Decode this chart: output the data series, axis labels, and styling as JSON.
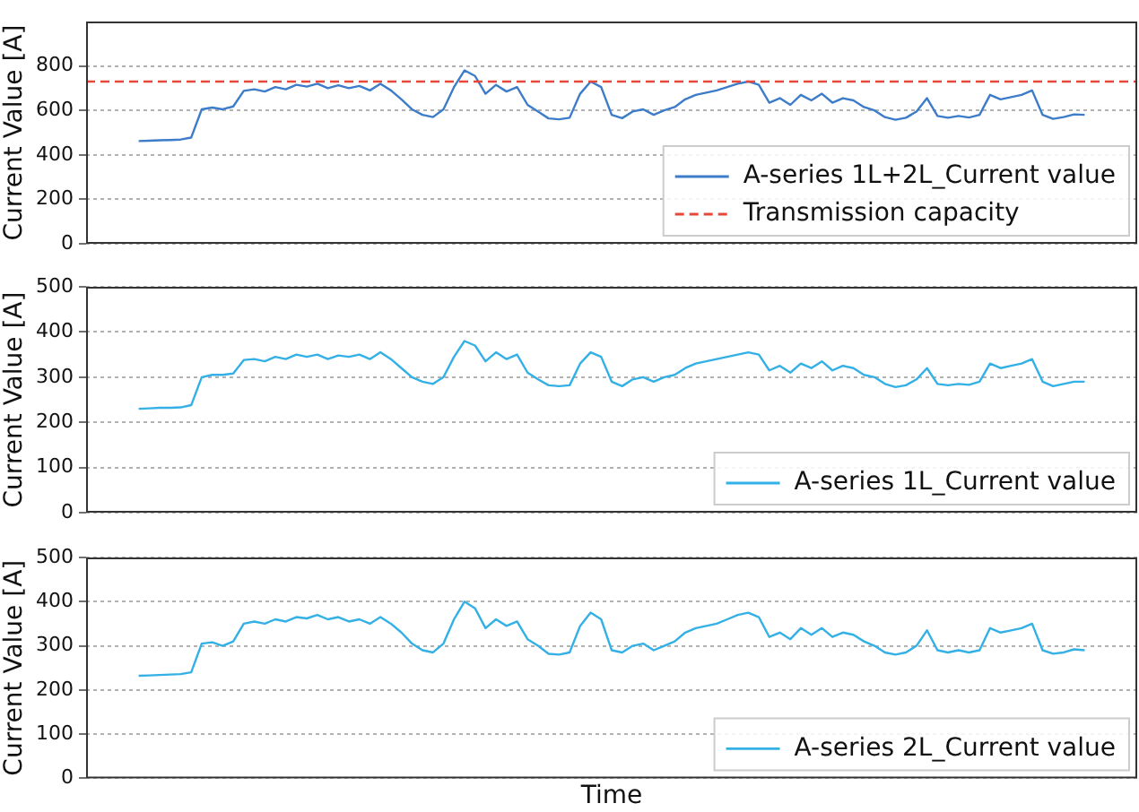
{
  "chart_data": [
    {
      "type": "line",
      "ylabel": "Current Value [A]",
      "categories": [
        null,
        null,
        null,
        null,
        null,
        null,
        null,
        null,
        null,
        null,
        null,
        null,
        null,
        null,
        null,
        null,
        null,
        null,
        null,
        null,
        null,
        null,
        null,
        null,
        null,
        null,
        null,
        null,
        null,
        null,
        null,
        null,
        null,
        null,
        null,
        null,
        null,
        null,
        null,
        null,
        null,
        null,
        null,
        null,
        null,
        null,
        null,
        null,
        null,
        null,
        null,
        null,
        null,
        null,
        null,
        null,
        null,
        null,
        null,
        null,
        null,
        null,
        null,
        null,
        null,
        null,
        null,
        null,
        null,
        null,
        null,
        null,
        null,
        null,
        null,
        null,
        null,
        null,
        null,
        null,
        null,
        null,
        null,
        null,
        null,
        null,
        null,
        null,
        null,
        null,
        null,
        null,
        null,
        null,
        null,
        null,
        null,
        null,
        null,
        null,
        null
      ],
      "series": [
        {
          "name": "A-series 1L+2L_Current value",
          "color": "#3d7cc9",
          "values": [
            null,
            null,
            null,
            null,
            null,
            462,
            464,
            466,
            467,
            469,
            478,
            605,
            613,
            605,
            618,
            688,
            695,
            685,
            705,
            695,
            715,
            707,
            720,
            700,
            713,
            700,
            710,
            690,
            720,
            690,
            650,
            605,
            580,
            570,
            605,
            705,
            780,
            755,
            675,
            715,
            685,
            705,
            625,
            595,
            564,
            560,
            567,
            675,
            730,
            705,
            580,
            565,
            595,
            605,
            580,
            600,
            615,
            650,
            670,
            680,
            690,
            705,
            720,
            730,
            715,
            635,
            655,
            625,
            670,
            645,
            675,
            635,
            655,
            645,
            615,
            600,
            570,
            558,
            567,
            595,
            655,
            575,
            567,
            575,
            568,
            580,
            670,
            650,
            660,
            670,
            690,
            580,
            562,
            570,
            582,
            580,
            null,
            null,
            null,
            null,
            null
          ]
        }
      ],
      "ref_lines": [
        {
          "axis": "y",
          "value": 730,
          "label": "Transmission capacity",
          "color": "#e8473a",
          "line_style": "dashed"
        }
      ],
      "ylim": [
        0,
        1000
      ],
      "yticks": [
        0,
        200,
        400,
        600,
        800
      ],
      "grid": "y",
      "legend": "bottom right",
      "tick_labels": "y"
    },
    {
      "type": "line",
      "ylabel": "Current Value [A]",
      "categories": [
        null,
        null,
        null,
        null,
        null,
        null,
        null,
        null,
        null,
        null,
        null,
        null,
        null,
        null,
        null,
        null,
        null,
        null,
        null,
        null,
        null,
        null,
        null,
        null,
        null,
        null,
        null,
        null,
        null,
        null,
        null,
        null,
        null,
        null,
        null,
        null,
        null,
        null,
        null,
        null,
        null,
        null,
        null,
        null,
        null,
        null,
        null,
        null,
        null,
        null,
        null,
        null,
        null,
        null,
        null,
        null,
        null,
        null,
        null,
        null,
        null,
        null,
        null,
        null,
        null,
        null,
        null,
        null,
        null,
        null,
        null,
        null,
        null,
        null,
        null,
        null,
        null,
        null,
        null,
        null,
        null,
        null,
        null,
        null,
        null,
        null,
        null,
        null,
        null,
        null,
        null,
        null,
        null,
        null,
        null,
        null,
        null,
        null,
        null,
        null,
        null
      ],
      "series": [
        {
          "name": "A-series 1L_Current value",
          "color": "#33b0e5",
          "values": [
            null,
            null,
            null,
            null,
            null,
            230,
            231,
            232,
            232,
            233,
            238,
            300,
            305,
            305,
            308,
            338,
            340,
            335,
            345,
            340,
            350,
            345,
            350,
            340,
            348,
            345,
            350,
            340,
            355,
            340,
            320,
            300,
            290,
            285,
            300,
            345,
            380,
            370,
            335,
            355,
            340,
            350,
            310,
            295,
            282,
            280,
            282,
            330,
            355,
            345,
            290,
            280,
            295,
            300,
            290,
            300,
            305,
            320,
            330,
            335,
            340,
            345,
            350,
            355,
            350,
            315,
            325,
            310,
            330,
            320,
            335,
            315,
            325,
            320,
            305,
            300,
            285,
            278,
            282,
            295,
            320,
            285,
            282,
            285,
            283,
            290,
            330,
            320,
            325,
            330,
            340,
            290,
            280,
            285,
            290,
            290,
            null,
            null,
            null,
            null,
            null
          ]
        }
      ],
      "ylim": [
        0,
        500
      ],
      "yticks": [
        0,
        100,
        200,
        300,
        400,
        500
      ],
      "grid": "y",
      "legend": "bottom right",
      "tick_labels": "y"
    },
    {
      "type": "line",
      "ylabel": "Current Value [A]",
      "xlabel": "Time",
      "categories": [
        null,
        null,
        null,
        null,
        null,
        null,
        null,
        null,
        null,
        null,
        null,
        null,
        null,
        null,
        null,
        null,
        null,
        null,
        null,
        null,
        null,
        null,
        null,
        null,
        null,
        null,
        null,
        null,
        null,
        null,
        null,
        null,
        null,
        null,
        null,
        null,
        null,
        null,
        null,
        null,
        null,
        null,
        null,
        null,
        null,
        null,
        null,
        null,
        null,
        null,
        null,
        null,
        null,
        null,
        null,
        null,
        null,
        null,
        null,
        null,
        null,
        null,
        null,
        null,
        null,
        null,
        null,
        null,
        null,
        null,
        null,
        null,
        null,
        null,
        null,
        null,
        null,
        null,
        null,
        null,
        null,
        null,
        null,
        null,
        null,
        null,
        null,
        null,
        null,
        null,
        null,
        null,
        null,
        null,
        null,
        null,
        null,
        null,
        null,
        null,
        null
      ],
      "series": [
        {
          "name": "A-series 2L_Current value",
          "color": "#33b0e5",
          "values": [
            null,
            null,
            null,
            null,
            null,
            232,
            233,
            234,
            235,
            236,
            240,
            305,
            308,
            300,
            310,
            350,
            355,
            350,
            360,
            355,
            365,
            362,
            370,
            360,
            365,
            355,
            360,
            350,
            365,
            350,
            330,
            305,
            290,
            285,
            305,
            360,
            400,
            385,
            340,
            360,
            345,
            355,
            315,
            300,
            282,
            280,
            285,
            345,
            375,
            360,
            290,
            285,
            300,
            305,
            290,
            300,
            310,
            330,
            340,
            345,
            350,
            360,
            370,
            375,
            365,
            320,
            330,
            315,
            340,
            325,
            340,
            320,
            330,
            325,
            310,
            300,
            285,
            280,
            285,
            300,
            335,
            290,
            285,
            290,
            285,
            290,
            340,
            330,
            335,
            340,
            350,
            290,
            282,
            285,
            292,
            290,
            null,
            null,
            null,
            null,
            null
          ]
        }
      ],
      "ylim": [
        0,
        500
      ],
      "yticks": [
        0,
        100,
        200,
        300,
        400,
        500
      ],
      "grid": "y",
      "legend": "bottom right",
      "tick_labels": "y"
    }
  ]
}
